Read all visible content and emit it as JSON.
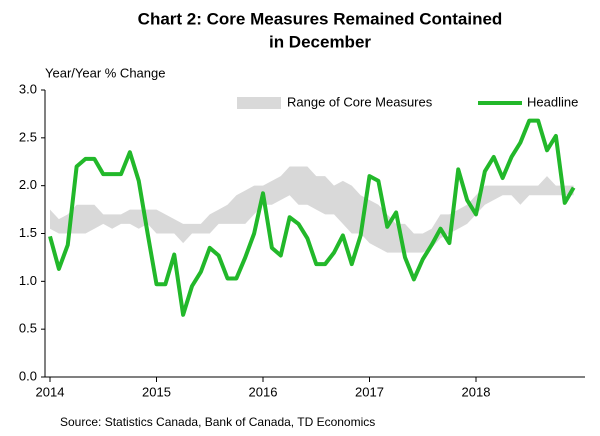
{
  "chart_data": {
    "type": "line",
    "title": [
      "Chart 2: Core Measures Remained Contained",
      "in December"
    ],
    "y_label": "Year/Year % Change",
    "source": "Source: Statistics Canada, Bank of Canada, TD Economics",
    "categories": [
      "2014",
      null,
      null,
      null,
      null,
      null,
      null,
      null,
      null,
      null,
      null,
      null,
      "2015",
      null,
      null,
      null,
      null,
      null,
      null,
      null,
      null,
      null,
      null,
      null,
      "2016",
      null,
      null,
      null,
      null,
      null,
      null,
      null,
      null,
      null,
      null,
      null,
      "2017",
      null,
      null,
      null,
      null,
      null,
      null,
      null,
      null,
      null,
      null,
      null,
      "2018",
      null,
      null,
      null,
      null,
      null,
      null,
      null,
      null,
      null,
      null,
      null
    ],
    "ylim": [
      0,
      3
    ],
    "yticks": [
      {
        "value": 0,
        "label": "0.0"
      },
      {
        "value": 0.5,
        "label": "0.5"
      },
      {
        "value": 1,
        "label": "1.0"
      },
      {
        "value": 1.5,
        "label": "1.5"
      },
      {
        "value": 2,
        "label": "2.0"
      },
      {
        "value": 2.5,
        "label": "2.5"
      },
      {
        "value": 3,
        "label": "3.0"
      }
    ],
    "grid": false,
    "legend": "top",
    "series": [
      {
        "name": "Range of Core Measures",
        "color": "#d9d9d9",
        "low": [
          1.55,
          1.5,
          1.5,
          1.5,
          1.5,
          1.55,
          1.6,
          1.55,
          1.6,
          1.6,
          1.55,
          1.6,
          1.5,
          1.5,
          1.5,
          1.4,
          1.5,
          1.5,
          1.5,
          1.6,
          1.6,
          1.6,
          1.6,
          1.7,
          1.8,
          1.8,
          1.85,
          1.9,
          1.8,
          1.8,
          1.75,
          1.7,
          1.7,
          1.6,
          1.5,
          1.5,
          1.4,
          1.35,
          1.3,
          1.3,
          1.3,
          1.3,
          1.3,
          1.35,
          1.45,
          1.5,
          1.55,
          1.6,
          1.7,
          1.8,
          1.85,
          1.9,
          1.9,
          1.8,
          1.9,
          1.9,
          1.9,
          1.9,
          1.9,
          1.9
        ],
        "high": [
          1.75,
          1.65,
          1.7,
          1.8,
          1.8,
          1.8,
          1.7,
          1.7,
          1.7,
          1.75,
          1.75,
          1.75,
          1.75,
          1.7,
          1.65,
          1.6,
          1.6,
          1.6,
          1.7,
          1.75,
          1.8,
          1.9,
          1.95,
          2.0,
          2.0,
          2.05,
          2.1,
          2.2,
          2.2,
          2.2,
          2.1,
          2.1,
          2.0,
          2.05,
          2.0,
          1.9,
          1.85,
          1.8,
          1.7,
          1.6,
          1.6,
          1.5,
          1.5,
          1.55,
          1.7,
          1.7,
          1.75,
          1.8,
          1.9,
          2.0,
          2.0,
          2.0,
          2.0,
          2.0,
          2.0,
          2.0,
          2.1,
          2.0,
          2.0,
          2.0
        ]
      },
      {
        "name": "Headline",
        "color": "#22b82a",
        "values": [
          1.47,
          1.13,
          1.38,
          2.2,
          2.28,
          2.28,
          2.12,
          2.12,
          2.12,
          2.35,
          2.05,
          1.5,
          0.97,
          0.97,
          1.28,
          0.65,
          0.95,
          1.1,
          1.35,
          1.27,
          1.03,
          1.03,
          1.25,
          1.5,
          1.92,
          1.35,
          1.27,
          1.67,
          1.6,
          1.45,
          1.18,
          1.18,
          1.3,
          1.48,
          1.18,
          1.48,
          2.1,
          2.05,
          1.57,
          1.72,
          1.25,
          1.02,
          1.23,
          1.38,
          1.55,
          1.4,
          2.17,
          1.85,
          1.7,
          2.15,
          2.3,
          2.08,
          2.3,
          2.45,
          2.68,
          2.68,
          2.37,
          2.52,
          1.82,
          1.98
        ]
      }
    ]
  }
}
